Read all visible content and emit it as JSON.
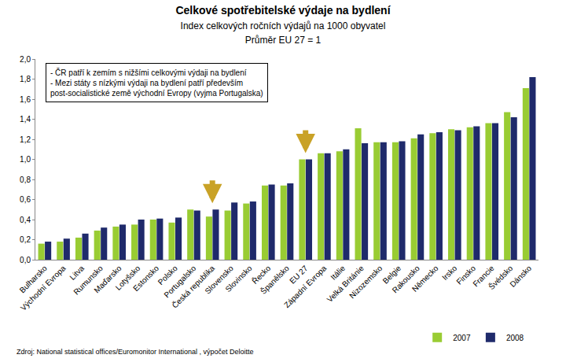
{
  "chart_data": {
    "type": "bar",
    "title": "Celkové spotřebitelské výdaje na bydlení",
    "subtitle": [
      "Index celkových ročních výdajů na 1000 obyvatel",
      "Průměr EU 27 = 1"
    ],
    "annotations": [
      "- ČR patří k zemím s nižšími celkovými výdaji na bydlení",
      "- Mezi státy s nízkými výdaji na bydlení patří především",
      "post-socialistické země východní Evropy (vyjma Portugalska)"
    ],
    "source": "Zdroj: National statistical offices/Euromonitor International , výpočet Deloitte",
    "arrows": [
      "Česká republika",
      "EU 27"
    ],
    "categories": [
      "Bulharsko",
      "Východní Evropa",
      "Litva",
      "Rumunsko",
      "Maďarsko",
      "Lotyšsko",
      "Estonsko",
      "Polsko",
      "Portugalsko",
      "Česká republika",
      "Slovensko",
      "Slovinsko",
      "Řecko",
      "Španělsko",
      "EU 27",
      "Západní Evropa",
      "Itálie",
      "Velká Británie",
      "Nizozemsko",
      "Belgie",
      "Rakousko",
      "Německo",
      "Irsko",
      "Finsko",
      "Francie",
      "Švédsko",
      "Dánsko"
    ],
    "series": [
      {
        "name": "2007",
        "color": "#99cc33",
        "values": [
          0.16,
          0.18,
          0.22,
          0.29,
          0.33,
          0.35,
          0.4,
          0.37,
          0.5,
          0.43,
          0.49,
          0.56,
          0.74,
          0.74,
          1.0,
          1.06,
          1.08,
          1.31,
          1.17,
          1.17,
          1.21,
          1.26,
          1.3,
          1.32,
          1.36,
          1.47,
          1.71
        ]
      },
      {
        "name": "2008",
        "color": "#1f2a6b",
        "values": [
          0.18,
          0.21,
          0.26,
          0.32,
          0.35,
          0.4,
          0.41,
          0.42,
          0.49,
          0.5,
          0.57,
          0.58,
          0.75,
          0.76,
          1.0,
          1.06,
          1.1,
          1.16,
          1.17,
          1.18,
          1.25,
          1.27,
          1.29,
          1.33,
          1.36,
          1.42,
          1.82
        ]
      }
    ],
    "ylim": [
      0,
      2.0
    ],
    "yticks": [
      {
        "value": 0,
        "label": "0,0"
      },
      {
        "value": 0.2,
        "label": "0,2"
      },
      {
        "value": 0.4,
        "label": "0,4"
      },
      {
        "value": 0.6,
        "label": "0,6"
      },
      {
        "value": 0.8,
        "label": "0,8"
      },
      {
        "value": 1.0,
        "label": "1,0"
      },
      {
        "value": 1.2,
        "label": "1,2"
      },
      {
        "value": 1.4,
        "label": "1,4"
      },
      {
        "value": 1.6,
        "label": "1,6"
      },
      {
        "value": 1.8,
        "label": "1,8"
      },
      {
        "value": 2.0,
        "label": "2,0"
      }
    ],
    "grid": false,
    "legend": "bottom"
  }
}
